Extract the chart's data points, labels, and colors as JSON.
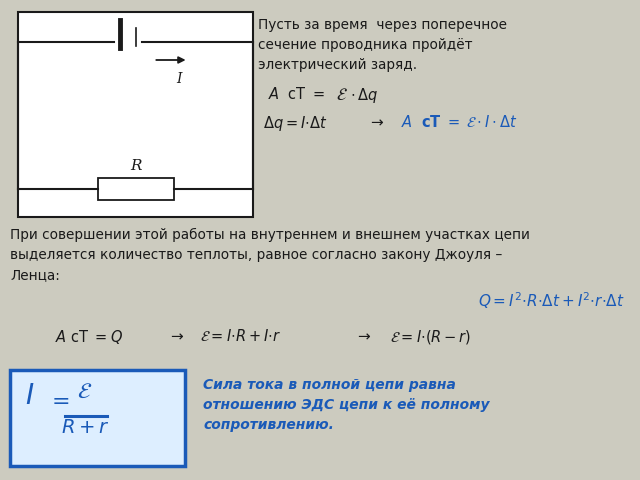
{
  "bg_color": "#cccbbf",
  "circuit_bg": "#f0ede4",
  "black": "#1a1a1a",
  "blue": "#1a5ab8",
  "text1": "Пусть за время  через поперечное\nсечение проводника пройдёт\nэлектрический заряд.",
  "para_text": "При совершении этой работы на внутреннем и внешнем участках цепи\nвыделяется количество теплоты, равное согласно закону Джоуля –\nЛенца:",
  "desc_blue": "Сила тока в полной цепи равна\nотношению ЭДС цепи к её полному\nсопротивлению."
}
